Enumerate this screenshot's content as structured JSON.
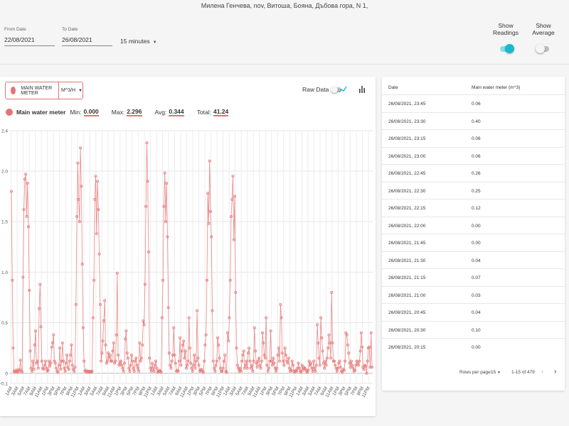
{
  "header": {
    "title": "Милена Генчева, nov, Витоша, Бояна, Дъбова гора, N 1,",
    "from_label": "From Date",
    "from_value": "22/08/2021",
    "to_label": "To Date",
    "to_value": "26/08/2021",
    "interval": "15 minutes",
    "show_readings": "Show Readings",
    "show_average": "Show Average"
  },
  "chart_panel": {
    "meter_name": "MAIN WATER METER",
    "unit": "M^3/H",
    "raw_data_label": "Raw Data",
    "stats": {
      "title": "Main water meter",
      "min_label": "Min:",
      "min": "0.000",
      "max_label": "Max:",
      "max": "2.296",
      "avg_label": "Avg:",
      "avg": "0.344",
      "total_label": "Total:",
      "total": "41.24"
    }
  },
  "chart_data": {
    "type": "line",
    "ylim": [
      -0.1,
      2.4
    ],
    "yticks": [
      "2.4",
      "2.0",
      "1.5",
      "1.0",
      "0.5",
      "0",
      "-0.1"
    ],
    "x_tick_labels": [
      "1AM",
      "3AM",
      "5AM",
      "7AM",
      "9AM",
      "11AM",
      "1PM",
      "3PM",
      "5PM",
      "7PM",
      "9PM",
      "11PM",
      "1AM",
      "3AM",
      "5AM",
      "7AM",
      "9AM",
      "11AM",
      "1PM",
      "3PM",
      "5PM",
      "7PM",
      "9PM",
      "11PM",
      "1AM",
      "3AM",
      "5AM",
      "7AM",
      "9AM",
      "11AM",
      "1PM",
      "3PM",
      "5PM",
      "7PM",
      "9PM",
      "11PM",
      "1AM",
      "3AM",
      "5AM",
      "7AM",
      "9AM",
      "11AM",
      "1PM",
      "3PM",
      "5PM",
      "7PM",
      "9PM",
      "11PM",
      "1AM",
      "3AM",
      "5AM",
      "7AM",
      "9AM",
      "11AM",
      "1PM",
      "3PM",
      "5PM",
      "7PM",
      "9PM",
      "11PM"
    ],
    "series": [
      {
        "color": "#e57373",
        "values": [
          1.8,
          0.92,
          0.25,
          0.02,
          0.01,
          0.03,
          0.02,
          0.01,
          0.04,
          0.02,
          0.13,
          0.03,
          0.01,
          0.95,
          1.62,
          1.92,
          1.97,
          1.55,
          1.88,
          1.45,
          0.82,
          0.22,
          0.05,
          0.02,
          0.12,
          0.04,
          0.28,
          0.42,
          0.1,
          0.12,
          0.05,
          0.64,
          0.88,
          0.46,
          0.12,
          0.05,
          0.04,
          0.08,
          0.12,
          0.05,
          0.02,
          0.03,
          0.12,
          0.07,
          0.1,
          0.26,
          0.3,
          0.38,
          0.12,
          0.1,
          0.05,
          0.02,
          0.01,
          0.08,
          0.25,
          0.04,
          0.12,
          0.3,
          0.12,
          0.05,
          0.02,
          0.1,
          0.18,
          0.06,
          0.04,
          0.12,
          0.18,
          0.28,
          0.08,
          0.04,
          0.02,
          0.06,
          0.68,
          1.55,
          2.08,
          1.72,
          1.5,
          2.23,
          1.85,
          1.08,
          0.45,
          0.12,
          0.02,
          0.03,
          0.01,
          0.02,
          0.02,
          0.01,
          0.02,
          0.01,
          0.02,
          0.55,
          0.92,
          1.72,
          1.95,
          1.38,
          1.9,
          1.62,
          1.18,
          0.68,
          0.12,
          0.2,
          0.32,
          0.52,
          0.72,
          0.28,
          0.1,
          0.12,
          0.2,
          0.15,
          0.18,
          0.12,
          0.12,
          0.22,
          0.3,
          0.1,
          0.12,
          0.38,
          0.99,
          0.18,
          0.08,
          0.1,
          0.12,
          0.08,
          0.05,
          0.02,
          0.1,
          0.34,
          0.42,
          0.2,
          0.15,
          0.05,
          0.02,
          0.08,
          0.18,
          0.12,
          0.05,
          0.02,
          0.12,
          0.15,
          0.08,
          0.05,
          0.02,
          0.3,
          0.12,
          0.15,
          0.28,
          0.52,
          0.48,
          0.88,
          1.65,
          2.28,
          1.9,
          1.2,
          0.15,
          0.05,
          0.02,
          0.1,
          0.05,
          0.02,
          0.08,
          0.12,
          0.05,
          0.01,
          0.02,
          0.03,
          0.02,
          0.01,
          0.55,
          0.92,
          1.65,
          1.98,
          1.5,
          1.88,
          1.35,
          0.65,
          0.2,
          0.08,
          0.05,
          0.12,
          0.18,
          0.45,
          0.18,
          0.1,
          0.02,
          0.03,
          0.02,
          0.12,
          0.35,
          0.08,
          0.22,
          0.28,
          0.32,
          0.15,
          0.22,
          0.05,
          0.08,
          0.12,
          0.55,
          0.25,
          0.1,
          0.05,
          0.02,
          0.08,
          0.18,
          0.05,
          0.12,
          0.62,
          0.15,
          0.08,
          0.02,
          0.03,
          0.04,
          0.02,
          0.01,
          0.12,
          0.28,
          0.38,
          0.92,
          1.78,
          1.48,
          2.1,
          1.6,
          1.35,
          0.62,
          0.12,
          0.05,
          0.02,
          0.08,
          0.12,
          0.35,
          0.28,
          0.15,
          0.05,
          0.02,
          0.02,
          0.05,
          0.12,
          0.18,
          0.02,
          0.01,
          0.4,
          0.32,
          0.55,
          0.92,
          1.55,
          1.72,
          1.95,
          1.32,
          1.75,
          0.8,
          0.25,
          0.08,
          0.05,
          0.02,
          0.05,
          0.02,
          0.12,
          0.18,
          0.22,
          0.05,
          0.08,
          0.12,
          0.05,
          0.2,
          0.25,
          0.12,
          0.05,
          0.08,
          0.02,
          0.12,
          0.45,
          0.22,
          0.1,
          0.06,
          0.12,
          0.15,
          0.08,
          0.05,
          0.12,
          0.4,
          0.3,
          0.18,
          0.15,
          0.55,
          0.08,
          0.02,
          0.05,
          0.12,
          0.42,
          0.12,
          0.08,
          0.15,
          0.1,
          0.05,
          0.02,
          0.05,
          0.18,
          0.25,
          0.12,
          0.68,
          0.55,
          0.2,
          0.12,
          0.08,
          0.25,
          0.18,
          0.12,
          0.1,
          0.15,
          0.05,
          0.02,
          0.03,
          0.12,
          0.08,
          0.02,
          0.01,
          0.03,
          0.02,
          0.05,
          0.1,
          0.05,
          0.02,
          0.01,
          0.08,
          0.03,
          0.06,
          0.05,
          0.04,
          0.02,
          0.01,
          0.03,
          0.12,
          0.08,
          0.1,
          0.05,
          0.02,
          0.12,
          0.05,
          0.02,
          0.08,
          0.48,
          0.3,
          0.15,
          0.08,
          0.55,
          0.35,
          0.22,
          0.1,
          0.05,
          0.12,
          0.08,
          0.15,
          0.25,
          0.38,
          0.3,
          0.15,
          0.8,
          0.3,
          0.12,
          0.12,
          0.08,
          0.05,
          0.02,
          0.05,
          0.1,
          0.12,
          0.06,
          0.02,
          0.01,
          0.04,
          0.03,
          0.12,
          0.4,
          0.38,
          0.28,
          0.2,
          0.1,
          0.06,
          0.12,
          0.08,
          0.05,
          0.02,
          0.03,
          0.08,
          0.12,
          0.1,
          0.08,
          0.12,
          0.22,
          0.4,
          0.26,
          0.06,
          0.04,
          0.08,
          0.07,
          0.0,
          0.12,
          0.25,
          0.26,
          0.06,
          0.4,
          0.06
        ]
      }
    ]
  },
  "table": {
    "col_date": "Date",
    "col_value": "Main water meter (m^3)",
    "rows": [
      {
        "date": "26/08/2021, 23:45",
        "value": "0.06"
      },
      {
        "date": "26/08/2021, 23:30",
        "value": "0.40"
      },
      {
        "date": "26/08/2021, 23:15",
        "value": "0.06"
      },
      {
        "date": "26/08/2021, 23:00",
        "value": "0.06"
      },
      {
        "date": "26/08/2021, 22:45",
        "value": "0.26"
      },
      {
        "date": "26/08/2021, 22:30",
        "value": "0.25"
      },
      {
        "date": "26/08/2021, 22:15",
        "value": "0.12"
      },
      {
        "date": "26/08/2021, 22:00",
        "value": "0.00"
      },
      {
        "date": "26/08/2021, 21:45",
        "value": "0.00"
      },
      {
        "date": "26/08/2021, 21:30",
        "value": "0.04"
      },
      {
        "date": "26/08/2021, 21:15",
        "value": "0.07"
      },
      {
        "date": "26/08/2021, 21:00",
        "value": "0.03"
      },
      {
        "date": "26/08/2021, 20:45",
        "value": "0.04"
      },
      {
        "date": "26/08/2021, 20:30",
        "value": "0.10"
      },
      {
        "date": "26/08/2021, 20:15",
        "value": "0.00"
      }
    ],
    "rows_per_page_label": "Rows per page:",
    "rows_per_page": "15",
    "range": "1-15 of 479",
    "prev": "‹",
    "next": "›"
  }
}
